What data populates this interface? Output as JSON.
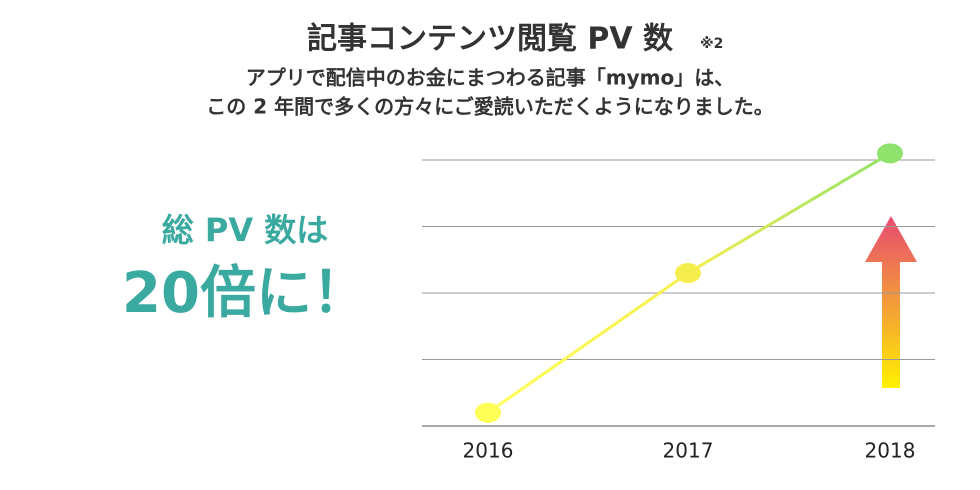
{
  "chart_data": {
    "type": "line",
    "title": "記事コンテンツ閲覧 PV 数",
    "note": "※2",
    "subtitle": [
      "アプリで配信中のお金にまつわる記事「mymo」は、",
      "この 2 年間で多くの方々にご愛読いただくようになりました。"
    ],
    "annotation": [
      "総 PV 数は",
      "20倍に！"
    ],
    "categories": [
      "2016",
      "2017",
      "2018"
    ],
    "series": [
      {
        "values": [
          0.2,
          2.3,
          4.1
        ],
        "colors": [
          "#ffff55",
          "#f6ee4e",
          "#8fe36c"
        ]
      }
    ],
    "ylim": [
      0,
      4.2
    ],
    "yticks": [
      0,
      1,
      2,
      3,
      4
    ],
    "grid": true
  }
}
